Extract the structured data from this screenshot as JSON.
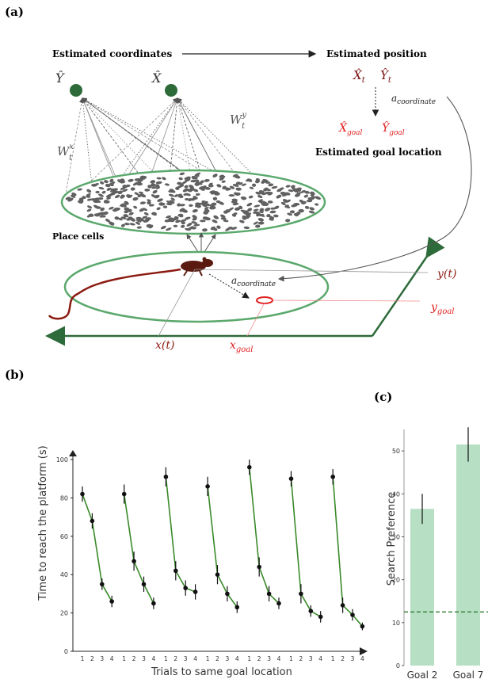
{
  "panel_a": {
    "label": "(a)",
    "estimated_coordinates": "Estimated coordinates",
    "estimated_position": "Estimated position",
    "y_hat": "Ŷ",
    "x_hat": "X̂",
    "x_hat_t": "X̂",
    "x_hat_t_sub": "t",
    "y_hat_t": "Ŷ",
    "y_hat_t_sub": "t",
    "a_coordinate_base": "a",
    "a_coordinate_sub": "coordinate",
    "wx_base": "W",
    "wx_sup": "x",
    "wx_sub": "t",
    "wy_base": "W",
    "wy_sup": "y",
    "wy_sub": "t",
    "x_hat_goal": "X̂",
    "x_hat_goal_sub": "goal",
    "y_hat_goal": "Ŷ",
    "y_hat_goal_sub": "goal",
    "estimated_goal_location": "Estimated goal location",
    "place_cells": "Place cells",
    "y_t": "y(t)",
    "x_t": "x(t)",
    "y_goal_base": "y",
    "y_goal_sub": "goal",
    "x_goal_base": "x",
    "x_goal_sub": "goal",
    "colors": {
      "green": "#5aa86c",
      "dark_green": "#2e6b3a",
      "red": "#e02020",
      "rat": "#5a1a10",
      "cell": "#606060"
    }
  },
  "panel_b": {
    "label": "(b)",
    "chart_data": {
      "type": "line",
      "ylabel": "Time to reach the platform (s)",
      "xlabel": "Trials to same goal location",
      "ylim": [
        0,
        100
      ],
      "yticks": [
        0,
        20,
        40,
        60,
        80,
        100
      ],
      "trial_labels": [
        "1",
        "2",
        "3",
        "4"
      ],
      "series": [
        {
          "values": [
            82,
            68,
            35,
            26
          ],
          "errors": [
            4,
            4,
            3,
            3
          ]
        },
        {
          "values": [
            82,
            47,
            35,
            25
          ],
          "errors": [
            5,
            5,
            4,
            3
          ]
        },
        {
          "values": [
            91,
            42,
            33,
            31
          ],
          "errors": [
            5,
            5,
            4,
            4
          ]
        },
        {
          "values": [
            86,
            40,
            30,
            23
          ],
          "errors": [
            5,
            5,
            4,
            3
          ]
        },
        {
          "values": [
            96,
            44,
            30,
            25
          ],
          "errors": [
            4,
            5,
            4,
            3
          ]
        },
        {
          "values": [
            90,
            30,
            21,
            18
          ],
          "errors": [
            4,
            5,
            3,
            3
          ]
        },
        {
          "values": [
            91,
            24,
            19,
            13
          ],
          "errors": [
            4,
            4,
            3,
            2
          ]
        }
      ],
      "colors": {
        "line": "#3a8a2a",
        "marker": "#111111"
      }
    }
  },
  "panel_c": {
    "label": "(c)",
    "chart_data": {
      "type": "bar",
      "ylabel": "Search Preference",
      "categories": [
        "Goal 2",
        "Goal 7"
      ],
      "values": [
        36.5,
        51.5
      ],
      "errors": [
        3.5,
        4
      ],
      "chance_level": 12.5,
      "ylim": [
        0,
        55
      ],
      "yticks": [
        0,
        10,
        20,
        30,
        40,
        50
      ],
      "colors": {
        "bar": "#b6dfc3",
        "line": "#2f7d32"
      }
    }
  }
}
